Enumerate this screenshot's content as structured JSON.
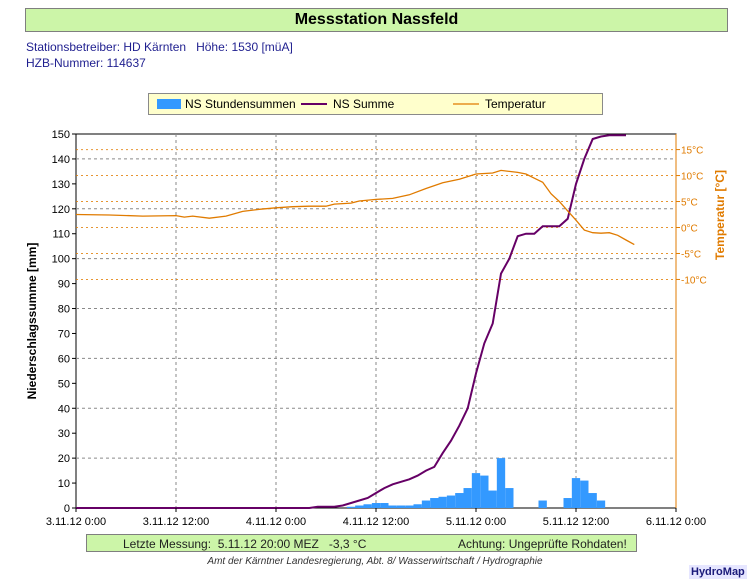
{
  "header": {
    "title": "Messstation Nassfeld",
    "operator_line": "Stationsbetreiber: HD Kärnten   Höhe: 1530 [müA]",
    "hzb_line": "HZB-Nummer: 114637"
  },
  "legend": {
    "items": [
      {
        "label": "NS Stundensummen"
      },
      {
        "label": "NS Summe"
      },
      {
        "label": "Temperatur"
      }
    ]
  },
  "status_bar": {
    "last_measurement": "Letzte Messung:  5.11.12 20:00 MEZ   -3,3 °C",
    "warning": "Achtung: Ungeprüfte Rohdaten!"
  },
  "footer": "Amt der Kärntner Landesregierung, Abt. 8/ Wasserwirtschaft / Hydrographie",
  "logo": "HydroMap",
  "colors": {
    "bars": "#3399ff",
    "cumulative": "#660066",
    "temperature": "#e07b00",
    "title_bg": "#ccf5a8",
    "legend_bg": "#ffffcc"
  },
  "chart_data": {
    "type": "bar+line",
    "xlabel": "",
    "ylabel": "Niederschlagssumme [mm]",
    "y2label": "Temperatur [°C]",
    "x_range_hours": [
      0,
      72
    ],
    "x_tick_labels": [
      "3.11.12 0:00",
      "3.11.12 12:00",
      "4.11.12 0:00",
      "4.11.12 12:00",
      "5.11.12 0:00",
      "5.11.12 12:00",
      "6.11.12 0:00"
    ],
    "ylim": [
      0,
      150
    ],
    "y_ticks": [
      0,
      10,
      20,
      30,
      40,
      50,
      60,
      70,
      80,
      90,
      100,
      110,
      120,
      130,
      140,
      150
    ],
    "y2lim": [
      -54,
      18
    ],
    "y2_ticks": [
      -10,
      -5,
      0,
      5,
      10,
      15
    ],
    "y2_tick_labels": [
      "-10°C",
      "-5°C",
      "0°C",
      "5°C",
      "10°C",
      "15°C"
    ],
    "grid": true,
    "legend_position": "top",
    "series": [
      {
        "name": "NS Stundensummen",
        "type": "bar",
        "hours": [
          33,
          34,
          35,
          36,
          37,
          38,
          39,
          40,
          41,
          42,
          43,
          44,
          45,
          46,
          47,
          48,
          49,
          50,
          51,
          52,
          56,
          59,
          60,
          61,
          62,
          63
        ],
        "values": [
          0.5,
          1,
          1.5,
          2,
          2,
          1,
          1,
          1,
          1.5,
          3,
          4,
          4.5,
          5,
          6,
          8,
          14,
          13,
          7,
          20,
          8,
          3,
          4,
          12,
          11,
          6,
          3
        ]
      },
      {
        "name": "NS Summe",
        "type": "line",
        "x": [
          0,
          27,
          28,
          29,
          30,
          31,
          32,
          33,
          34,
          35,
          36,
          37,
          38,
          39,
          40,
          41,
          42,
          43,
          44,
          45,
          46,
          47,
          48,
          49,
          50,
          51,
          52,
          53,
          54,
          55,
          56,
          57,
          58,
          59,
          60,
          61,
          62,
          63,
          64,
          66
        ],
        "y": [
          0,
          0,
          0,
          0.5,
          0.5,
          0.5,
          1,
          2,
          3,
          4,
          6,
          8,
          9.5,
          10.5,
          11.5,
          13,
          15,
          16.5,
          22,
          27,
          33,
          40,
          54,
          66,
          74,
          94,
          100,
          109,
          110,
          110,
          113,
          113,
          113,
          116,
          130,
          140,
          148,
          149,
          149.5,
          149.5
        ]
      },
      {
        "name": "Temperatur",
        "type": "line",
        "x": [
          0,
          4,
          8,
          12,
          13,
          14,
          16,
          18,
          20,
          22,
          24,
          26,
          28,
          30,
          31,
          33,
          34,
          36,
          38,
          40,
          42,
          44,
          46,
          48,
          50,
          51,
          52,
          53,
          54,
          55,
          56,
          57,
          58,
          59,
          60,
          61,
          62,
          63,
          64,
          65,
          66,
          67
        ],
        "y": [
          2.5,
          2.4,
          2.2,
          2.3,
          2,
          2.2,
          1.8,
          2.2,
          3.1,
          3.5,
          3.8,
          4,
          4.1,
          4.1,
          4.5,
          4.7,
          5.1,
          5.4,
          5.6,
          6.3,
          7.5,
          8.6,
          9.3,
          10.3,
          10.5,
          11,
          10.8,
          10.6,
          10.3,
          9.5,
          8.7,
          6.5,
          5,
          3.2,
          1.4,
          -0.5,
          -1,
          -1.1,
          -1,
          -1.5,
          -2.4,
          -3.3
        ]
      }
    ]
  }
}
